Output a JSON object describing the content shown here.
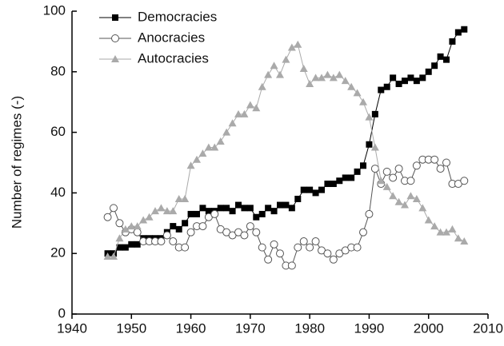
{
  "chart_data": {
    "type": "line",
    "ylabel": "Number of regimes (-)",
    "x": [
      1946,
      1947,
      1948,
      1949,
      1950,
      1951,
      1952,
      1953,
      1954,
      1955,
      1956,
      1957,
      1958,
      1959,
      1960,
      1961,
      1962,
      1963,
      1964,
      1965,
      1966,
      1967,
      1968,
      1969,
      1970,
      1971,
      1972,
      1973,
      1974,
      1975,
      1976,
      1977,
      1978,
      1979,
      1980,
      1981,
      1982,
      1983,
      1984,
      1985,
      1986,
      1987,
      1988,
      1989,
      1990,
      1991,
      1992,
      1993,
      1994,
      1995,
      1996,
      1997,
      1998,
      1999,
      2000,
      2001,
      2002,
      2003,
      2004,
      2005,
      2006
    ],
    "series": [
      {
        "name": "Democracies",
        "color": "#000000",
        "marker": "square",
        "values": [
          20,
          20,
          22,
          22,
          23,
          23,
          25,
          25,
          25,
          25,
          27,
          29,
          28,
          30,
          33,
          33,
          35,
          34,
          34,
          35,
          35,
          34,
          36,
          35,
          35,
          32,
          33,
          35,
          34,
          36,
          36,
          35,
          38,
          41,
          41,
          40,
          41,
          43,
          43,
          44,
          45,
          45,
          47,
          49,
          56,
          66,
          74,
          75,
          78,
          76,
          77,
          78,
          77,
          78,
          80,
          82,
          85,
          84,
          90,
          93,
          94
        ]
      },
      {
        "name": "Anocracies",
        "color": "#555555",
        "marker": "circle",
        "values": [
          32,
          35,
          30,
          27,
          28,
          27,
          24,
          24,
          24,
          24,
          26,
          24,
          22,
          22,
          27,
          29,
          29,
          32,
          33,
          28,
          27,
          26,
          27,
          26,
          29,
          27,
          22,
          18,
          23,
          20,
          16,
          16,
          22,
          24,
          22,
          24,
          21,
          20,
          18,
          20,
          21,
          22,
          22,
          27,
          33,
          48,
          43,
          47,
          45,
          48,
          44,
          44,
          49,
          51,
          51,
          51,
          48,
          50,
          43,
          43,
          44
        ]
      },
      {
        "name": "Autocracies",
        "color": "#aaaaaa",
        "marker": "triangle",
        "values": [
          19,
          19,
          25,
          28,
          29,
          29,
          31,
          32,
          34,
          35,
          34,
          34,
          38,
          38,
          49,
          51,
          53,
          55,
          55,
          57,
          60,
          63,
          66,
          66,
          69,
          68,
          75,
          79,
          82,
          79,
          84,
          88,
          89,
          81,
          76,
          78,
          78,
          79,
          78,
          79,
          77,
          75,
          73,
          70,
          65,
          55,
          44,
          42,
          39,
          37,
          36,
          39,
          38,
          35,
          31,
          29,
          27,
          27,
          28,
          25,
          24
        ]
      }
    ],
    "xlim": [
      1940,
      2010
    ],
    "xticks": [
      1940,
      1950,
      1960,
      1970,
      1980,
      1990,
      2000,
      2010
    ],
    "ylim": [
      0,
      100
    ],
    "yticks": [
      0,
      20,
      40,
      60,
      80,
      100
    ],
    "legend": "upper-left"
  }
}
